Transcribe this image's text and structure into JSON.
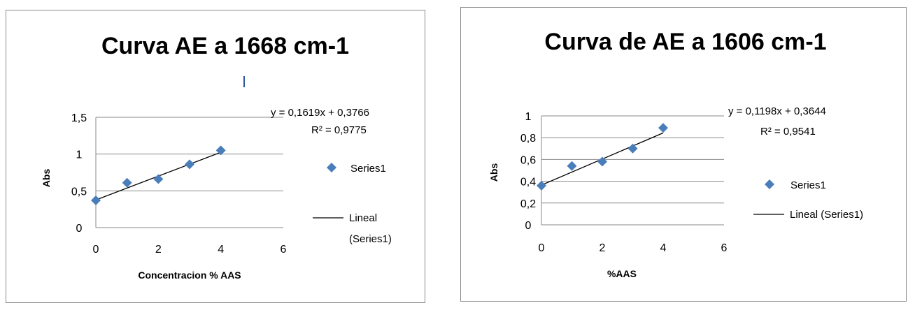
{
  "chart_data": [
    {
      "type": "scatter",
      "title": "Curva AE a 1668 cm-1",
      "xlabel": "Concentracion % AAS",
      "ylabel": "Abs",
      "xlim": [
        0,
        6
      ],
      "ylim": [
        0,
        1.5
      ],
      "xticks": [
        "0",
        "2",
        "4",
        "6"
      ],
      "yticks": [
        "0",
        "0,5",
        "1",
        "1,5"
      ],
      "grid": "horizontal",
      "series": [
        {
          "name": "Series1",
          "marker": "diamond",
          "color": "#4a7ebb",
          "x": [
            0,
            1,
            2,
            3,
            4
          ],
          "y": [
            0.37,
            0.61,
            0.66,
            0.86,
            1.05
          ]
        }
      ],
      "trendline": {
        "name": "Lineal (Series1)",
        "name_line1": "Lineal",
        "name_line2": "(Series1)",
        "slope": 0.1619,
        "intercept": 0.3766,
        "equation": "y = 0,1619x + 0,3766",
        "r2": "R² = 0,9775"
      },
      "legend_position": "right"
    },
    {
      "type": "scatter",
      "title": "Curva de AE a 1606 cm-1",
      "xlabel": "%AAS",
      "ylabel": "Abs",
      "xlim": [
        0,
        6
      ],
      "ylim": [
        0,
        1
      ],
      "xticks": [
        "0",
        "2",
        "4",
        "6"
      ],
      "yticks": [
        "0",
        "0,2",
        "0,4",
        "0,6",
        "0,8",
        "1"
      ],
      "grid": "horizontal",
      "series": [
        {
          "name": "Series1",
          "marker": "diamond",
          "color": "#4a7ebb",
          "x": [
            0,
            1,
            2,
            3,
            4
          ],
          "y": [
            0.36,
            0.54,
            0.58,
            0.7,
            0.89
          ]
        }
      ],
      "trendline": {
        "name": "Lineal (Series1)",
        "slope": 0.1198,
        "intercept": 0.3644,
        "equation": "y = 0,1198x + 0,3644",
        "r2": "R² = 0,9541"
      },
      "legend_position": "right"
    }
  ]
}
